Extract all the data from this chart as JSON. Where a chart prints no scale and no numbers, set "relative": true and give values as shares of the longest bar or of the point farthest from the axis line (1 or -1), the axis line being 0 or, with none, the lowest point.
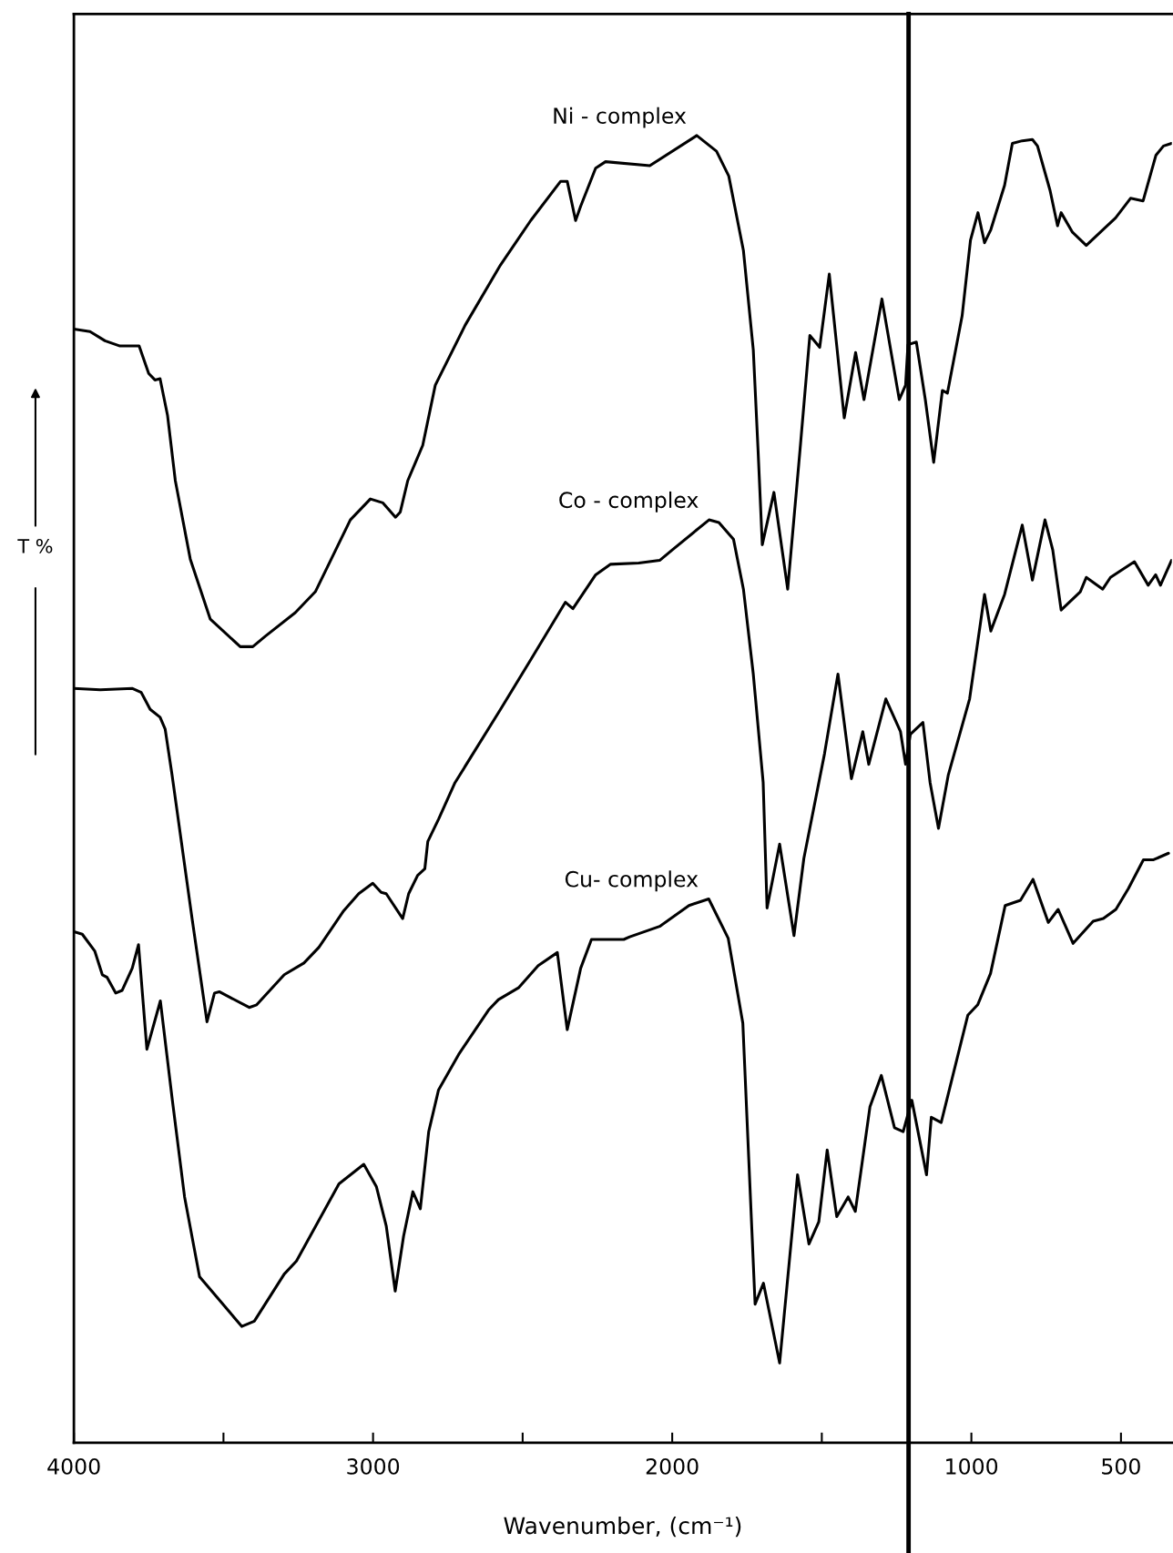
{
  "chart_data": {
    "type": "line",
    "relative": true,
    "xlabel": "Wavenumber, (cm⁻¹)",
    "ylabel": "T %",
    "xlim": [
      4000,
      330
    ],
    "xticks": [
      4000,
      {
        "value": 3500,
        "label": null
      },
      3000,
      {
        "value": 2500,
        "label": null
      },
      2000,
      {
        "value": 1500,
        "label": null
      },
      1000,
      500
    ],
    "tick_labels": "x",
    "grid": false,
    "legend": false,
    "marker": "none",
    "line_style": "solid",
    "ref_lines": [
      {
        "axis": "x",
        "value": 1210,
        "color": "#000000",
        "line_style": "solid"
      }
    ],
    "series": [
      {
        "name": "Ni - complex",
        "color": "#000000",
        "x": [
          4000,
          3946,
          3896,
          3846,
          3782,
          3750,
          3729,
          3712,
          3687,
          3661,
          3611,
          3544,
          3444,
          3402,
          3360,
          3260,
          3193,
          3076,
          3009,
          2967,
          2925,
          2909,
          2884,
          2834,
          2792,
          2692,
          2574,
          2473,
          2373,
          2351,
          2323,
          2306,
          2256,
          2223,
          2075,
          1918,
          1852,
          1811,
          1762,
          1729,
          1713,
          1699,
          1660,
          1614,
          1573,
          1540,
          1507,
          1475,
          1425,
          1387,
          1359,
          1299,
          1241,
          1220,
          1212,
          1184,
          1154,
          1126,
          1097,
          1080,
          1031,
          1003,
          978,
          956,
          935,
          889,
          863,
          830,
          796,
          779,
          737,
          712,
          700,
          662,
          616,
          518,
          468,
          426,
          383,
          358,
          331
        ],
        "values": [
          0.852,
          0.85,
          0.843,
          0.839,
          0.839,
          0.818,
          0.813,
          0.814,
          0.786,
          0.736,
          0.676,
          0.63,
          0.609,
          0.609,
          0.617,
          0.635,
          0.651,
          0.706,
          0.722,
          0.719,
          0.708,
          0.712,
          0.736,
          0.763,
          0.809,
          0.855,
          0.901,
          0.935,
          0.965,
          0.965,
          0.935,
          0.946,
          0.975,
          0.98,
          0.977,
          1.0,
          0.988,
          0.969,
          0.912,
          0.836,
          0.759,
          0.687,
          0.727,
          0.653,
          0.759,
          0.847,
          0.838,
          0.894,
          0.784,
          0.834,
          0.798,
          0.875,
          0.798,
          0.809,
          0.84,
          0.842,
          0.798,
          0.75,
          0.805,
          0.803,
          0.862,
          0.92,
          0.941,
          0.918,
          0.928,
          0.962,
          0.994,
          0.996,
          0.997,
          0.992,
          0.958,
          0.931,
          0.941,
          0.926,
          0.916,
          0.937,
          0.952,
          0.95,
          0.985,
          0.992,
          0.994
        ]
      },
      {
        "name": "Co - complex",
        "color": "#000000",
        "x": [
          4000,
          3912,
          3804,
          3775,
          3745,
          3712,
          3695,
          3672,
          3605,
          3555,
          3530,
          3514,
          3414,
          3389,
          3297,
          3231,
          3181,
          3098,
          3048,
          3001,
          2973,
          2956,
          2901,
          2881,
          2851,
          2827,
          2817,
          2781,
          2726,
          2574,
          2473,
          2357,
          2332,
          2256,
          2207,
          2112,
          2042,
          2000,
          1877,
          1844,
          1795,
          1762,
          1729,
          1696,
          1683,
          1641,
          1593,
          1560,
          1491,
          1446,
          1401,
          1363,
          1343,
          1286,
          1237,
          1220,
          1204,
          1162,
          1138,
          1110,
          1077,
          1006,
          956,
          935,
          889,
          830,
          796,
          754,
          728,
          700,
          636,
          616,
          561,
          535,
          455,
          409,
          384,
          368,
          331
        ],
        "values": [
          0.577,
          0.576,
          0.577,
          0.574,
          0.561,
          0.555,
          0.546,
          0.511,
          0.401,
          0.322,
          0.344,
          0.345,
          0.333,
          0.335,
          0.358,
          0.367,
          0.379,
          0.407,
          0.42,
          0.428,
          0.421,
          0.42,
          0.401,
          0.42,
          0.434,
          0.439,
          0.46,
          0.477,
          0.505,
          0.561,
          0.599,
          0.643,
          0.638,
          0.664,
          0.672,
          0.673,
          0.675,
          0.683,
          0.706,
          0.704,
          0.691,
          0.653,
          0.588,
          0.505,
          0.409,
          0.458,
          0.388,
          0.447,
          0.527,
          0.588,
          0.508,
          0.544,
          0.519,
          0.569,
          0.544,
          0.519,
          0.542,
          0.551,
          0.505,
          0.47,
          0.511,
          0.569,
          0.649,
          0.621,
          0.649,
          0.702,
          0.66,
          0.706,
          0.683,
          0.637,
          0.651,
          0.662,
          0.653,
          0.662,
          0.674,
          0.656,
          0.664,
          0.656,
          0.675
        ]
      },
      {
        "name": "Cu- complex",
        "color": "#000000",
        "x": [
          4000,
          3972,
          3930,
          3905,
          3889,
          3860,
          3839,
          3805,
          3784,
          3756,
          3711,
          3672,
          3630,
          3580,
          3439,
          3397,
          3297,
          3256,
          3114,
          3031,
          2989,
          2956,
          2926,
          2898,
          2867,
          2842,
          2814,
          2781,
          2714,
          2614,
          2581,
          2514,
          2448,
          2384,
          2351,
          2306,
          2270,
          2162,
          2142,
          2042,
          1944,
          1878,
          1813,
          1764,
          1723,
          1695,
          1641,
          1581,
          1543,
          1510,
          1482,
          1450,
          1412,
          1388,
          1339,
          1301,
          1257,
          1228,
          1199,
          1150,
          1134,
          1101,
          1012,
          979,
          936,
          887,
          836,
          794,
          743,
          710,
          660,
          593,
          559,
          517,
          475,
          425,
          391,
          341
        ],
        "values": [
          0.391,
          0.389,
          0.376,
          0.358,
          0.356,
          0.344,
          0.346,
          0.363,
          0.381,
          0.301,
          0.338,
          0.264,
          0.188,
          0.127,
          0.089,
          0.093,
          0.129,
          0.139,
          0.198,
          0.213,
          0.196,
          0.166,
          0.116,
          0.158,
          0.192,
          0.179,
          0.238,
          0.27,
          0.297,
          0.331,
          0.339,
          0.348,
          0.365,
          0.375,
          0.316,
          0.363,
          0.385,
          0.385,
          0.387,
          0.395,
          0.411,
          0.416,
          0.386,
          0.321,
          0.106,
          0.122,
          0.061,
          0.205,
          0.152,
          0.169,
          0.224,
          0.173,
          0.188,
          0.177,
          0.257,
          0.281,
          0.241,
          0.238,
          0.262,
          0.205,
          0.249,
          0.245,
          0.327,
          0.335,
          0.359,
          0.411,
          0.415,
          0.431,
          0.398,
          0.408,
          0.382,
          0.399,
          0.401,
          0.408,
          0.424,
          0.446,
          0.446,
          0.451
        ]
      }
    ]
  }
}
